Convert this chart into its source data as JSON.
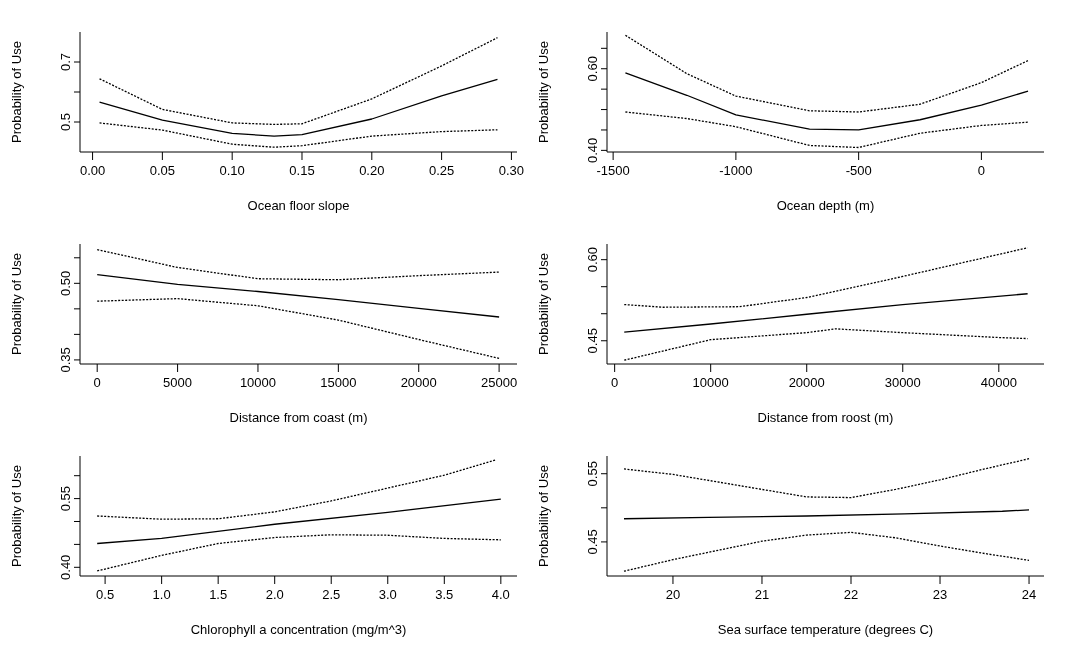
{
  "chart_data": [
    {
      "type": "line",
      "xlabel": "Ocean floor slope",
      "ylabel": "Probability of Use",
      "xlim": [
        -0.009,
        0.304
      ],
      "ylim": [
        0.4,
        0.8
      ],
      "xticks": [
        {
          "value": 0,
          "label": "0.00"
        },
        0.05,
        {
          "value": 0.1,
          "label": "0.10"
        },
        0.15,
        {
          "value": 0.2,
          "label": "0.20"
        },
        0.25,
        {
          "value": 0.3,
          "label": "0.30"
        }
      ],
      "yticks": [
        0.5,
        {
          "value": 0.6,
          "label": null
        },
        0.7
      ],
      "series": [
        {
          "color": "#000000",
          "line_style": "solid",
          "x": [
            0.005,
            0.05,
            0.1,
            0.13,
            0.15,
            0.2,
            0.25,
            0.29
          ],
          "values": [
            0.566,
            0.506,
            0.462,
            0.453,
            0.458,
            0.51,
            0.587,
            0.642
          ]
        },
        {
          "color": "#000000",
          "line_style": "dotted",
          "x": [
            0.005,
            0.05,
            0.1,
            0.13,
            0.15,
            0.2,
            0.25,
            0.29
          ],
          "values": [
            0.644,
            0.542,
            0.497,
            0.492,
            0.494,
            0.577,
            0.687,
            0.781
          ]
        },
        {
          "color": "#000000",
          "line_style": "dotted",
          "x": [
            0.005,
            0.05,
            0.1,
            0.13,
            0.15,
            0.2,
            0.25,
            0.29
          ],
          "values": [
            0.497,
            0.473,
            0.426,
            0.416,
            0.421,
            0.453,
            0.468,
            0.474
          ]
        }
      ]
    },
    {
      "type": "line",
      "xlabel": "Ocean depth (m)",
      "ylabel": "Probability of Use",
      "xlim": [
        -1525,
        255
      ],
      "ylim": [
        0.396,
        0.69
      ],
      "xticks": [
        -1500,
        -1000,
        -500,
        0
      ],
      "yticks": [
        {
          "value": 0.4,
          "label": "0.40"
        },
        {
          "value": 0.45,
          "label": null
        },
        {
          "value": 0.5,
          "label": null
        },
        {
          "value": 0.55,
          "label": null
        },
        {
          "value": 0.6,
          "label": "0.60"
        },
        {
          "value": 0.65,
          "label": null
        }
      ],
      "series": [
        {
          "color": "#000000",
          "line_style": "solid",
          "x": [
            -1450,
            -1200,
            -1000,
            -700,
            -500,
            -250,
            0,
            190
          ],
          "values": [
            0.59,
            0.535,
            0.487,
            0.452,
            0.45,
            0.475,
            0.511,
            0.545
          ]
        },
        {
          "color": "#000000",
          "line_style": "dotted",
          "x": [
            -1450,
            -1200,
            -1000,
            -700,
            -500,
            -250,
            0,
            190
          ],
          "values": [
            0.682,
            0.588,
            0.533,
            0.497,
            0.494,
            0.513,
            0.566,
            0.62
          ]
        },
        {
          "color": "#000000",
          "line_style": "dotted",
          "x": [
            -1450,
            -1200,
            -1000,
            -700,
            -500,
            -250,
            0,
            190
          ],
          "values": [
            0.494,
            0.478,
            0.458,
            0.412,
            0.407,
            0.442,
            0.461,
            0.469
          ]
        }
      ]
    },
    {
      "type": "line",
      "xlabel": "Distance from coast (m)",
      "ylabel": "Probability of Use",
      "xlim": [
        -1070,
        26113
      ],
      "ylim": [
        0.342,
        0.577
      ],
      "xticks": [
        0,
        5000,
        10000,
        15000,
        20000,
        25000
      ],
      "yticks": [
        0.35,
        {
          "value": 0.4,
          "label": null
        },
        {
          "value": 0.45,
          "label": null
        },
        {
          "value": 0.5,
          "label": "0.50"
        },
        {
          "value": 0.55,
          "label": null
        }
      ],
      "series": [
        {
          "color": "#000000",
          "line_style": "solid",
          "x": [
            0,
            5000,
            10000,
            15000,
            20000,
            25000
          ],
          "values": [
            0.517,
            0.498,
            0.484,
            0.468,
            0.451,
            0.434
          ]
        },
        {
          "color": "#000000",
          "line_style": "dotted",
          "x": [
            0,
            5000,
            10000,
            15000,
            20000,
            25000
          ],
          "values": [
            0.566,
            0.531,
            0.509,
            0.507,
            0.515,
            0.522
          ]
        },
        {
          "color": "#000000",
          "line_style": "dotted",
          "x": [
            0,
            5000,
            10000,
            15000,
            20000,
            25000
          ],
          "values": [
            0.465,
            0.47,
            0.456,
            0.428,
            0.39,
            0.353
          ]
        }
      ]
    },
    {
      "type": "line",
      "xlabel": "Distance from roost (m)",
      "ylabel": "Probability of Use",
      "xlim": [
        -796,
        44706
      ],
      "ylim": [
        0.407,
        0.629
      ],
      "xticks": [
        0,
        10000,
        20000,
        30000,
        40000
      ],
      "yticks": [
        0.45,
        {
          "value": 0.5,
          "label": null
        },
        {
          "value": 0.55,
          "label": null
        },
        {
          "value": 0.6,
          "label": "0.60"
        }
      ],
      "series": [
        {
          "color": "#000000",
          "line_style": "solid",
          "x": [
            1000,
            10000,
            20000,
            30000,
            43000
          ],
          "values": [
            0.466,
            0.481,
            0.499,
            0.517,
            0.537
          ]
        },
        {
          "color": "#000000",
          "line_style": "dotted",
          "x": [
            1000,
            5000,
            13000,
            20000,
            30000,
            43000
          ],
          "values": [
            0.517,
            0.512,
            0.513,
            0.53,
            0.569,
            0.622
          ]
        },
        {
          "color": "#000000",
          "line_style": "dotted",
          "x": [
            1000,
            10000,
            20000,
            23000,
            30000,
            40000,
            43000
          ],
          "values": [
            0.414,
            0.452,
            0.465,
            0.472,
            0.465,
            0.456,
            0.454
          ]
        }
      ]
    },
    {
      "type": "line",
      "xlabel": "Chlorophyll a concentration (mg/m^3)",
      "ylabel": "Probability of Use",
      "xlim": [
        0.278,
        4.143
      ],
      "ylim": [
        0.381,
        0.643
      ],
      "xticks": [
        0.5,
        {
          "value": 1,
          "label": "1.0"
        },
        1.5,
        {
          "value": 2,
          "label": "2.0"
        },
        2.5,
        {
          "value": 3,
          "label": "3.0"
        },
        3.5,
        {
          "value": 4,
          "label": "4.0"
        }
      ],
      "yticks": [
        {
          "value": 0.4,
          "label": "0.40"
        },
        {
          "value": 0.45,
          "label": null
        },
        {
          "value": 0.5,
          "label": null
        },
        0.55,
        {
          "value": 0.6,
          "label": null
        }
      ],
      "series": [
        {
          "color": "#000000",
          "line_style": "solid",
          "x": [
            0.43,
            1,
            2,
            3,
            4
          ],
          "values": [
            0.452,
            0.463,
            0.494,
            0.52,
            0.549
          ]
        },
        {
          "color": "#000000",
          "line_style": "dotted",
          "x": [
            0.43,
            1,
            1.5,
            2,
            2.5,
            3,
            3.5,
            3.95
          ],
          "values": [
            0.512,
            0.505,
            0.506,
            0.521,
            0.545,
            0.573,
            0.601,
            0.634
          ]
        },
        {
          "color": "#000000",
          "line_style": "dotted",
          "x": [
            0.43,
            1,
            1.5,
            2,
            2.5,
            3,
            3.5,
            4
          ],
          "values": [
            0.392,
            0.426,
            0.452,
            0.465,
            0.471,
            0.47,
            0.463,
            0.46
          ]
        }
      ]
    },
    {
      "type": "line",
      "xlabel": "Sea surface temperature (degrees C)",
      "ylabel": "Probability of Use",
      "xlim": [
        19.259,
        24.168
      ],
      "ylim": [
        0.4,
        0.576
      ],
      "xticks": [
        20,
        21,
        22,
        23,
        24
      ],
      "yticks": [
        0.45,
        {
          "value": 0.5,
          "label": null
        },
        0.55
      ],
      "series": [
        {
          "color": "#000000",
          "line_style": "solid",
          "x": [
            19.45,
            20.4,
            21.5,
            22.6,
            23.7,
            24
          ],
          "values": [
            0.484,
            0.486,
            0.488,
            0.491,
            0.495,
            0.497
          ]
        },
        {
          "color": "#000000",
          "line_style": "dotted",
          "x": [
            19.45,
            20,
            21,
            21.5,
            22,
            22.5,
            23,
            23.5,
            24
          ],
          "values": [
            0.557,
            0.549,
            0.527,
            0.516,
            0.515,
            0.527,
            0.541,
            0.557,
            0.572
          ]
        },
        {
          "color": "#000000",
          "line_style": "dotted",
          "x": [
            19.45,
            20,
            21,
            21.5,
            22,
            22.5,
            23,
            23.5,
            24
          ],
          "values": [
            0.407,
            0.424,
            0.451,
            0.46,
            0.464,
            0.456,
            0.444,
            0.433,
            0.423
          ]
        }
      ]
    }
  ]
}
